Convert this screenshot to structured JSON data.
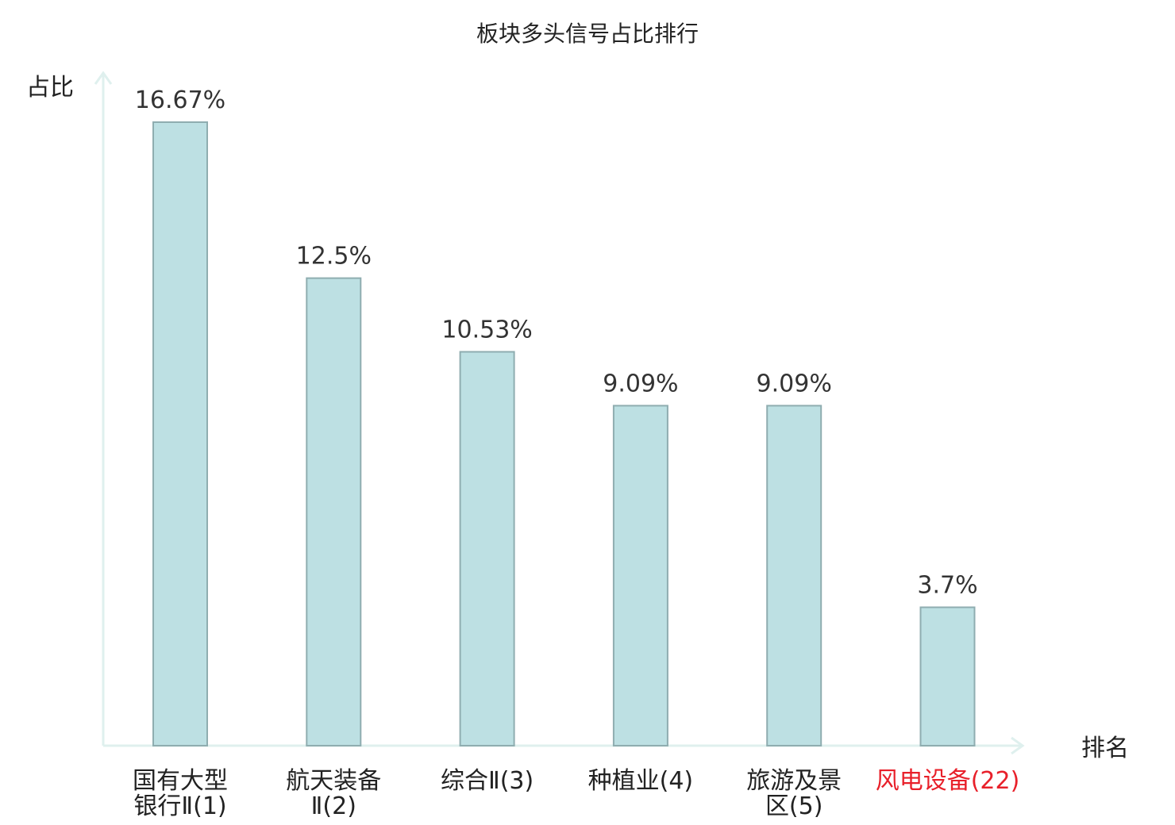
{
  "chart_data": {
    "type": "bar",
    "title": "板块多头信号占比排行",
    "ylabel": "占比",
    "xlabel": "排名",
    "ylim": [
      0,
      18
    ],
    "grid": false,
    "unit": "%",
    "categories": [
      {
        "lines": [
          "国有大型",
          "银行Ⅱ(1)"
        ],
        "highlight": false
      },
      {
        "lines": [
          "航天装备",
          "Ⅱ(2)"
        ],
        "highlight": false
      },
      {
        "lines": [
          "综合Ⅱ(3)"
        ],
        "highlight": false
      },
      {
        "lines": [
          "种植业(4)"
        ],
        "highlight": false
      },
      {
        "lines": [
          "旅游及景",
          "区(5)"
        ],
        "highlight": false
      },
      {
        "lines": [
          "风电设备(22)"
        ],
        "highlight": true
      }
    ],
    "values": [
      16.67,
      12.5,
      10.53,
      9.09,
      9.09,
      3.7
    ],
    "value_labels": [
      "16.67%",
      "12.5%",
      "10.53%",
      "9.09%",
      "9.09%",
      "3.7%"
    ],
    "colors": {
      "bar_fill": "#bde0e3",
      "bar_stroke": "#8fadb0",
      "axis": "#dff0ee",
      "highlight_text": "#e8202a",
      "text": "#222222"
    }
  }
}
